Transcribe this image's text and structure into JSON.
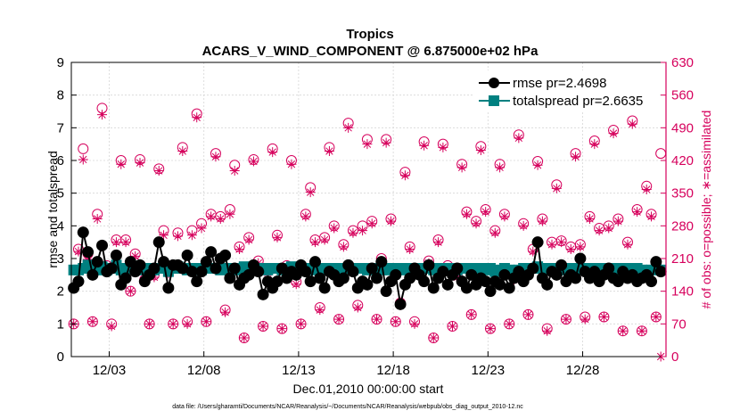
{
  "chart_data": {
    "type": "line",
    "title": "Tropics",
    "subtitle": "ACARS_V_WIND_COMPONENT @ 6.875000e+02 hPa",
    "xlabel": "Dec.01,2010 00:00:00 start",
    "ylabel_left": "rmse and totalspread",
    "ylabel_right": "# of obs: o=possible; ∗=assimilated",
    "footnote": "data file: /Users/gharamti/Documents/NCAR/Reanalysis/~/Documents/NCAR/Reanalysis/webpub/obs_diag_output_2010-12.nc",
    "xlim": [
      1.0,
      32.4
    ],
    "ylim_left": [
      0,
      9
    ],
    "ylim_right": [
      0,
      630
    ],
    "x_ticks": [
      {
        "value": 3,
        "label": "12/03"
      },
      {
        "value": 8,
        "label": "12/08"
      },
      {
        "value": 13,
        "label": "12/13"
      },
      {
        "value": 18,
        "label": "12/18"
      },
      {
        "value": 23,
        "label": "12/23"
      },
      {
        "value": 28,
        "label": "12/28"
      }
    ],
    "y_ticks_left": [
      "0",
      "1",
      "2",
      "3",
      "4",
      "5",
      "6",
      "7",
      "8",
      "9"
    ],
    "y_ticks_right": [
      "0",
      "70",
      "140",
      "210",
      "280",
      "350",
      "420",
      "490",
      "560",
      "630"
    ],
    "colors": {
      "rmse": "#000000",
      "totalspread": "#008080",
      "obs": "#d6005c",
      "axis_right": "#d6005c"
    },
    "legend": [
      {
        "name": "rmse pr=2.4698",
        "key": "rmse",
        "marker": "circle"
      },
      {
        "name": "totalspread pr=2.6635",
        "key": "totalspread",
        "marker": "square"
      }
    ],
    "series": {
      "rmse": {
        "x": [
          1.125,
          1.375,
          1.625,
          1.875,
          2.125,
          2.375,
          2.625,
          2.875,
          3.125,
          3.375,
          3.625,
          3.875,
          4.125,
          4.375,
          4.625,
          4.875,
          5.125,
          5.375,
          5.625,
          5.875,
          6.125,
          6.375,
          6.625,
          6.875,
          7.125,
          7.375,
          7.625,
          7.875,
          8.125,
          8.375,
          8.625,
          8.875,
          9.125,
          9.375,
          9.625,
          9.875,
          10.125,
          10.375,
          10.625,
          10.875,
          11.125,
          11.375,
          11.625,
          11.875,
          12.125,
          12.375,
          12.625,
          12.875,
          13.125,
          13.375,
          13.625,
          13.875,
          14.125,
          14.375,
          14.625,
          14.875,
          15.125,
          15.375,
          15.625,
          15.875,
          16.125,
          16.375,
          16.625,
          16.875,
          17.125,
          17.375,
          17.625,
          17.875,
          18.125,
          18.375,
          18.625,
          18.875,
          19.125,
          19.375,
          19.625,
          19.875,
          20.125,
          20.375,
          20.625,
          20.875,
          21.125,
          21.375,
          21.625,
          21.875,
          22.125,
          22.375,
          22.625,
          22.875,
          23.125,
          23.375,
          23.625,
          23.875,
          24.125,
          24.375,
          24.625,
          24.875,
          25.125,
          25.375,
          25.625,
          25.875,
          26.125,
          26.375,
          26.625,
          26.875,
          27.125,
          27.375,
          27.625,
          27.875,
          28.125,
          28.375,
          28.625,
          28.875,
          29.125,
          29.375,
          29.625,
          29.875,
          30.125,
          30.375,
          30.625,
          30.875,
          31.125,
          31.375,
          31.625,
          31.875,
          32.125
        ],
        "values": [
          2.1,
          2.3,
          3.8,
          3.2,
          2.5,
          2.9,
          3.4,
          2.6,
          2.7,
          3.1,
          2.2,
          2.4,
          2.9,
          2.6,
          2.8,
          2.3,
          2.5,
          2.7,
          3.5,
          2.9,
          2.1,
          2.8,
          2.8,
          2.7,
          3.1,
          2.6,
          2.3,
          2.6,
          2.9,
          3.2,
          2.7,
          3.0,
          3.1,
          2.4,
          2.7,
          2.2,
          2.4,
          2.5,
          2.8,
          2.6,
          1.9,
          2.3,
          2.1,
          2.3,
          2.7,
          2.4,
          2.6,
          2.5,
          2.8,
          2.6,
          2.3,
          2.9,
          2.4,
          2.1,
          2.6,
          2.5,
          2.3,
          2.4,
          2.8,
          2.6,
          2.1,
          2.3,
          2.2,
          2.7,
          2.4,
          2.9,
          2.0,
          2.3,
          2.5,
          1.6,
          2.2,
          2.4,
          2.7,
          2.5,
          2.3,
          2.8,
          2.1,
          2.4,
          2.6,
          2.2,
          2.5,
          2.7,
          2.3,
          2.1,
          2.5,
          2.2,
          2.4,
          2.3,
          2.0,
          2.3,
          2.2,
          2.5,
          2.1,
          2.4,
          2.6,
          2.3,
          2.5,
          2.7,
          3.5,
          2.4,
          2.2,
          2.6,
          2.5,
          2.8,
          2.3,
          2.5,
          2.4,
          3.0,
          2.6,
          2.4,
          2.6,
          2.3,
          2.5,
          2.7,
          2.4,
          2.3,
          2.6,
          2.4,
          2.5,
          2.3,
          2.4,
          2.5,
          2.3,
          2.9,
          2.6
        ]
      },
      "totalspread": {
        "x": [
          1.125,
          1.375,
          1.625,
          1.875,
          2.125,
          2.375,
          2.625,
          2.875,
          3.125,
          3.375,
          3.625,
          3.875,
          4.125,
          4.375,
          4.625,
          4.875,
          5.125,
          5.375,
          5.625,
          5.875,
          6.125,
          6.375,
          6.625,
          6.875,
          7.125,
          7.375,
          7.625,
          7.875,
          8.125,
          8.375,
          8.625,
          8.875,
          9.125,
          9.375,
          9.625,
          9.875,
          10.125,
          10.375,
          10.625,
          10.875,
          11.125,
          11.375,
          11.625,
          11.875,
          12.125,
          12.375,
          12.625,
          12.875,
          13.125,
          13.375,
          13.625,
          13.875,
          14.125,
          14.375,
          14.625,
          14.875,
          15.125,
          15.375,
          15.625,
          15.875,
          16.125,
          16.375,
          16.625,
          16.875,
          17.125,
          17.375,
          17.625,
          17.875,
          18.125,
          18.375,
          18.625,
          18.875,
          19.125,
          19.375,
          19.625,
          19.875,
          20.125,
          20.375,
          20.625,
          20.875,
          21.125,
          21.375,
          21.625,
          21.875,
          22.125,
          22.375,
          22.625,
          22.875,
          23.125,
          23.375,
          23.625,
          23.875,
          24.125,
          24.375,
          24.625,
          24.875,
          25.125,
          25.375,
          25.625,
          25.875,
          26.125,
          26.375,
          26.625,
          26.875,
          27.125,
          27.375,
          27.625,
          27.875,
          28.125,
          28.375,
          28.625,
          28.875,
          29.125,
          29.375,
          29.625,
          29.875,
          30.125,
          30.375,
          30.625,
          30.875,
          31.125,
          31.375,
          31.625,
          31.875,
          32.125
        ],
        "values": [
          2.65,
          2.65,
          2.7,
          2.8,
          2.7,
          2.65,
          2.75,
          2.65,
          2.7,
          2.8,
          2.65,
          2.7,
          2.75,
          2.7,
          2.7,
          2.65,
          2.7,
          2.65,
          2.7,
          2.7,
          2.6,
          2.7,
          2.75,
          2.7,
          2.65,
          2.7,
          2.7,
          2.65,
          2.75,
          2.7,
          2.7,
          2.65,
          2.7,
          2.7,
          2.65,
          2.7,
          2.75,
          2.7,
          2.65,
          2.7,
          2.7,
          2.65,
          2.7,
          2.7,
          2.65,
          2.7,
          2.75,
          2.7,
          2.65,
          2.7,
          2.7,
          2.65,
          2.7,
          2.65,
          2.7,
          2.7,
          2.65,
          2.7,
          2.7,
          2.65,
          2.7,
          2.7,
          2.65,
          2.7,
          2.7,
          2.65,
          2.7,
          2.65,
          2.7,
          2.7,
          2.65,
          2.7,
          2.7,
          2.65,
          2.7,
          2.7,
          2.65,
          2.7,
          2.7,
          2.65,
          2.7,
          2.65,
          2.7,
          2.7,
          2.65,
          2.7,
          2.7,
          2.65,
          2.7,
          2.6,
          2.65,
          2.7,
          2.65,
          2.6,
          2.65,
          2.7,
          2.65,
          2.7,
          2.75,
          2.7,
          2.65,
          2.7,
          2.7,
          2.65,
          2.7,
          2.7,
          2.65,
          2.7,
          2.7,
          2.65,
          2.7,
          2.7,
          2.65,
          2.7,
          2.7,
          2.65,
          2.7,
          2.7,
          2.65,
          2.7,
          2.65,
          2.6,
          2.65,
          2.7,
          2.65
        ]
      },
      "obs_possible": {
        "x": [
          1.125,
          1.375,
          1.625,
          1.875,
          2.125,
          2.375,
          2.625,
          2.875,
          3.125,
          3.375,
          3.625,
          3.875,
          4.125,
          4.375,
          4.625,
          4.875,
          5.125,
          5.375,
          5.625,
          5.875,
          6.125,
          6.375,
          6.625,
          6.875,
          7.125,
          7.375,
          7.625,
          7.875,
          8.125,
          8.375,
          8.625,
          8.875,
          9.125,
          9.375,
          9.625,
          9.875,
          10.125,
          10.375,
          10.625,
          10.875,
          11.125,
          11.375,
          11.625,
          11.875,
          12.125,
          12.375,
          12.625,
          12.875,
          13.125,
          13.375,
          13.625,
          13.875,
          14.125,
          14.375,
          14.625,
          14.875,
          15.125,
          15.375,
          15.625,
          15.875,
          16.125,
          16.375,
          16.625,
          16.875,
          17.125,
          17.375,
          17.625,
          17.875,
          18.125,
          18.375,
          18.625,
          18.875,
          19.125,
          19.375,
          19.625,
          19.875,
          20.125,
          20.375,
          20.625,
          20.875,
          21.125,
          21.375,
          21.625,
          21.875,
          22.125,
          22.375,
          22.625,
          22.875,
          23.125,
          23.375,
          23.625,
          23.875,
          24.125,
          24.375,
          24.625,
          24.875,
          25.125,
          25.375,
          25.625,
          25.875,
          26.125,
          26.375,
          26.625,
          26.875,
          27.125,
          27.375,
          27.625,
          27.875,
          28.125,
          28.375,
          28.625,
          28.875,
          29.125,
          29.375,
          29.625,
          29.875,
          30.125,
          30.375,
          30.625,
          30.875,
          31.125,
          31.375,
          31.625,
          31.875,
          32.125
        ],
        "values": [
          70,
          230,
          445,
          220,
          75,
          305,
          532,
          195,
          70,
          250,
          420,
          250,
          140,
          220,
          422,
          165,
          70,
          175,
          402,
          270,
          182,
          70,
          265,
          448,
          75,
          270,
          520,
          285,
          75,
          305,
          435,
          300,
          100,
          315,
          410,
          235,
          40,
          255,
          422,
          205,
          65,
          185,
          445,
          260,
          60,
          195,
          420,
          160,
          70,
          305,
          362,
          250,
          105,
          255,
          448,
          280,
          80,
          240,
          500,
          270,
          110,
          280,
          465,
          290,
          80,
          210,
          465,
          295,
          75,
          115,
          395,
          235,
          75,
          185,
          460,
          205,
          40,
          250,
          455,
          195,
          65,
          175,
          412,
          310,
          90,
          290,
          450,
          315,
          60,
          270,
          412,
          305,
          70,
          170,
          475,
          285,
          90,
          230,
          418,
          295,
          60,
          245,
          368,
          248,
          80,
          235,
          435,
          240,
          85,
          300,
          462,
          275,
          85,
          280,
          485,
          295,
          55,
          245,
          505,
          315,
          55,
          365,
          305,
          85,
          435
        ]
      },
      "obs_assimilated": {
        "x": [
          1.125,
          1.375,
          1.625,
          1.875,
          2.125,
          2.375,
          2.625,
          2.875,
          3.125,
          3.375,
          3.625,
          3.875,
          4.125,
          4.375,
          4.625,
          4.875,
          5.125,
          5.375,
          5.625,
          5.875,
          6.125,
          6.375,
          6.625,
          6.875,
          7.125,
          7.375,
          7.625,
          7.875,
          8.125,
          8.375,
          8.625,
          8.875,
          9.125,
          9.375,
          9.625,
          9.875,
          10.125,
          10.375,
          10.625,
          10.875,
          11.125,
          11.375,
          11.625,
          11.875,
          12.125,
          12.375,
          12.625,
          12.875,
          13.125,
          13.375,
          13.625,
          13.875,
          14.125,
          14.375,
          14.625,
          14.875,
          15.125,
          15.375,
          15.625,
          15.875,
          16.125,
          16.375,
          16.625,
          16.875,
          17.125,
          17.375,
          17.625,
          17.875,
          18.125,
          18.375,
          18.625,
          18.875,
          19.125,
          19.375,
          19.625,
          19.875,
          20.125,
          20.375,
          20.625,
          20.875,
          21.125,
          21.375,
          21.625,
          21.875,
          22.125,
          22.375,
          22.625,
          22.875,
          23.125,
          23.375,
          23.625,
          23.875,
          24.125,
          24.375,
          24.625,
          24.875,
          25.125,
          25.375,
          25.625,
          25.875,
          26.125,
          26.375,
          26.625,
          26.875,
          27.125,
          27.375,
          27.625,
          27.875,
          28.125,
          28.375,
          28.625,
          28.875,
          29.125,
          29.375,
          29.625,
          29.875,
          30.125,
          30.375,
          30.625,
          30.875,
          31.125,
          31.375,
          31.625,
          31.875,
          32.125
        ],
        "values": [
          70,
          225,
          422,
          208,
          75,
          295,
          518,
          185,
          65,
          245,
          412,
          245,
          140,
          215,
          415,
          160,
          70,
          170,
          398,
          260,
          178,
          70,
          258,
          440,
          70,
          260,
          512,
          275,
          75,
          300,
          428,
          295,
          95,
          305,
          398,
          230,
          40,
          250,
          418,
          200,
          65,
          180,
          438,
          255,
          60,
          190,
          412,
          155,
          70,
          300,
          352,
          245,
          100,
          250,
          440,
          275,
          80,
          235,
          490,
          265,
          105,
          270,
          455,
          285,
          80,
          205,
          458,
          290,
          75,
          110,
          388,
          230,
          70,
          180,
          452,
          200,
          40,
          245,
          448,
          190,
          65,
          170,
          405,
          305,
          90,
          285,
          442,
          310,
          60,
          265,
          405,
          300,
          70,
          165,
          468,
          280,
          90,
          225,
          410,
          290,
          55,
          240,
          360,
          245,
          80,
          230,
          428,
          235,
          80,
          295,
          455,
          270,
          85,
          275,
          478,
          290,
          55,
          240,
          498,
          310,
          55,
          358,
          300,
          85,
          0
        ]
      }
    }
  }
}
